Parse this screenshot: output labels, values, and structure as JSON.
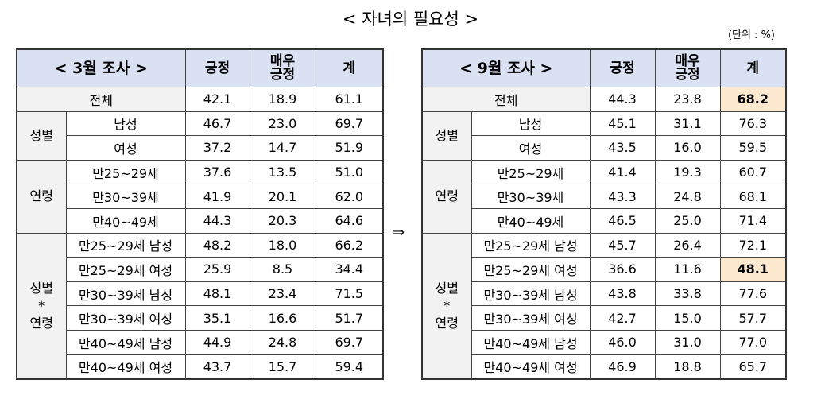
{
  "title": "< 자녀의 필요성 >",
  "unit": "(단위 : %)",
  "arrow": "⇒",
  "tables": [
    {
      "header": [
        "< 3월 조사 >",
        "긍정",
        "매우\n긍정",
        "계"
      ],
      "total": {
        "label": "전체",
        "values": [
          "42.1",
          "18.9",
          "61.1"
        ]
      },
      "groups": [
        {
          "label": "성별",
          "rows": [
            {
              "label": "남성",
              "values": [
                "46.7",
                "23.0",
                "69.7"
              ]
            },
            {
              "label": "여성",
              "values": [
                "37.2",
                "14.7",
                "51.9"
              ]
            }
          ]
        },
        {
          "label": "연령",
          "rows": [
            {
              "label": "만25~29세",
              "values": [
                "37.6",
                "13.5",
                "51.0"
              ]
            },
            {
              "label": "만30~39세",
              "values": [
                "41.9",
                "20.1",
                "62.0"
              ]
            },
            {
              "label": "만40~49세",
              "values": [
                "44.3",
                "20.3",
                "64.6"
              ]
            }
          ]
        },
        {
          "label": "성별\n*\n연령",
          "rows": [
            {
              "label": "만25~29세 남성",
              "values": [
                "48.2",
                "18.0",
                "66.2"
              ]
            },
            {
              "label": "만25~29세 여성",
              "values": [
                "25.9",
                "8.5",
                "34.4"
              ]
            },
            {
              "label": "만30~39세 남성",
              "values": [
                "48.1",
                "23.4",
                "71.5"
              ]
            },
            {
              "label": "만30~39세 여성",
              "values": [
                "35.1",
                "16.6",
                "51.7"
              ]
            },
            {
              "label": "만40~49세 남성",
              "values": [
                "44.9",
                "24.8",
                "69.7"
              ]
            },
            {
              "label": "만40~49세 여성",
              "values": [
                "43.7",
                "15.7",
                "59.4"
              ]
            }
          ]
        }
      ]
    },
    {
      "header": [
        "< 9월 조사 >",
        "긍정",
        "매우\n긍정",
        "계"
      ],
      "total": {
        "label": "전체",
        "values": [
          "44.3",
          "23.8",
          "68.2"
        ]
      },
      "groups": [
        {
          "label": "성별",
          "rows": [
            {
              "label": "남성",
              "values": [
                "45.1",
                "31.1",
                "76.3"
              ]
            },
            {
              "label": "여성",
              "values": [
                "43.5",
                "16.0",
                "59.5"
              ]
            }
          ]
        },
        {
          "label": "연령",
          "rows": [
            {
              "label": "만25~29세",
              "values": [
                "41.4",
                "19.3",
                "60.7"
              ]
            },
            {
              "label": "만30~39세",
              "values": [
                "43.3",
                "24.8",
                "68.1"
              ]
            },
            {
              "label": "만40~49세",
              "values": [
                "46.5",
                "25.0",
                "71.4"
              ]
            }
          ]
        },
        {
          "label": "성별\n*\n연령",
          "rows": [
            {
              "label": "만25~29세 남성",
              "values": [
                "45.7",
                "26.4",
                "72.1"
              ]
            },
            {
              "label": "만25~29세 여성",
              "values": [
                "36.6",
                "11.6",
                "48.1"
              ]
            },
            {
              "label": "만30~39세 남성",
              "values": [
                "43.8",
                "33.8",
                "77.6"
              ]
            },
            {
              "label": "만30~39세 여성",
              "values": [
                "42.7",
                "15.0",
                "57.7"
              ]
            },
            {
              "label": "만40~49세 남성",
              "values": [
                "46.0",
                "31.0",
                "77.0"
              ]
            },
            {
              "label": "만40~49세 여성",
              "values": [
                "46.9",
                "18.8",
                "65.7"
              ]
            }
          ]
        }
      ]
    }
  ]
}
